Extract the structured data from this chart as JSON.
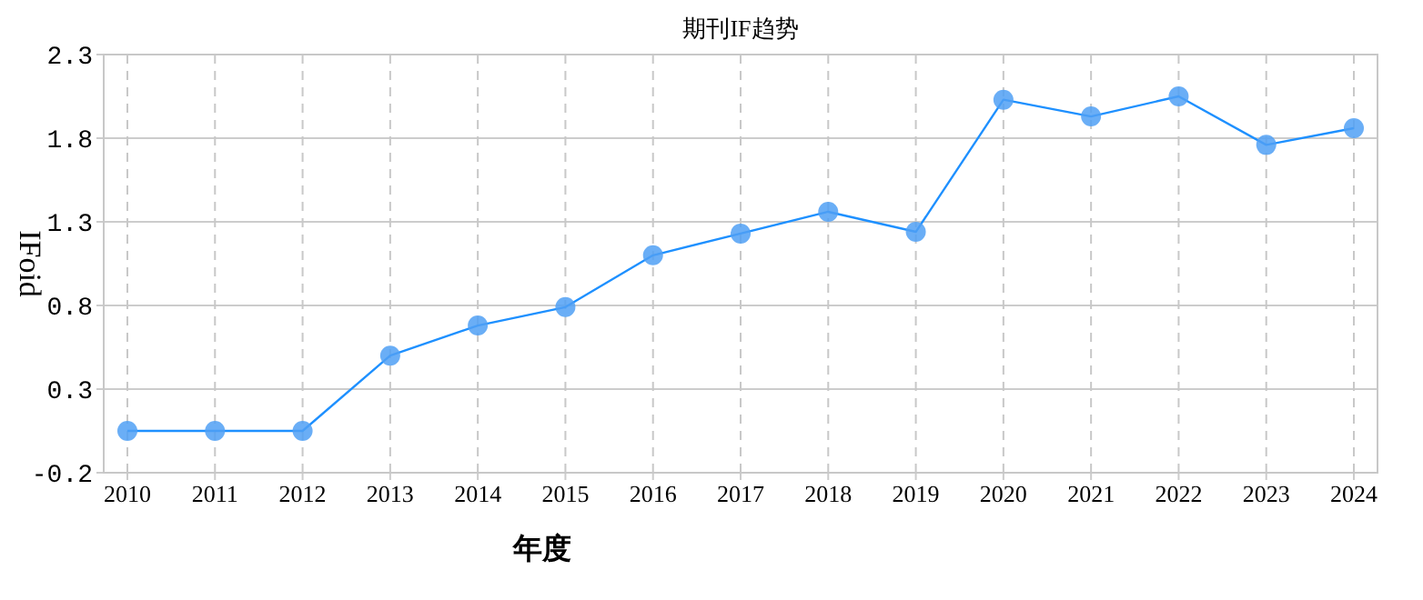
{
  "chart_data": {
    "type": "line",
    "title": "期刊IF趋势",
    "xlabel": "年度",
    "ylabel": "IFoid",
    "categories": [
      "2010",
      "2011",
      "2012",
      "2013",
      "2014",
      "2015",
      "2016",
      "2017",
      "2018",
      "2019",
      "2020",
      "2021",
      "2022",
      "2023",
      "2024"
    ],
    "series": [
      {
        "color": "#1e90ff",
        "values": [
          0.05,
          0.05,
          0.05,
          0.5,
          0.68,
          0.79,
          1.1,
          1.23,
          1.36,
          1.24,
          2.03,
          1.93,
          2.05,
          1.76,
          1.86
        ]
      }
    ],
    "ylim": [
      -0.2,
      2.3
    ],
    "yticks": [
      {
        "value": -0.2,
        "label": "-0.2"
      },
      0.3,
      0.8,
      1.3,
      1.8,
      2.3
    ],
    "grid": true,
    "marker": "circle",
    "line_style": "solid"
  }
}
